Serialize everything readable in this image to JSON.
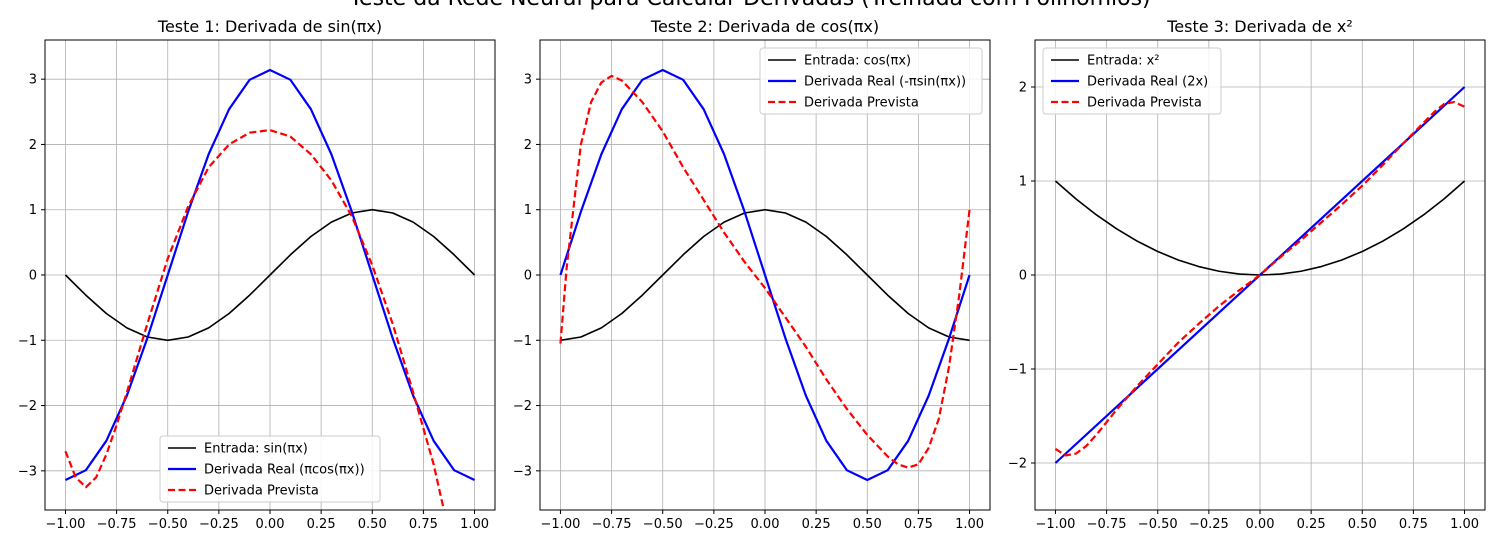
{
  "figure_title": "Teste da Rede Neural para Calcular Derivadas (Treinada com Polinômios)",
  "chart_data": [
    {
      "type": "line",
      "title": "Teste 1: Derivada de sin(πx)",
      "xlim": [
        -1.1,
        1.1
      ],
      "ylim": [
        -3.6,
        3.6
      ],
      "xticks": [
        "−1.00",
        "−0.75",
        "−0.50",
        "−0.25",
        "0.00",
        "0.25",
        "0.50",
        "0.75",
        "1.00"
      ],
      "yticks": [
        "−3",
        "−2",
        "−1",
        "0",
        "1",
        "2",
        "3"
      ],
      "grid": true,
      "legend_position": "lower-center",
      "series": [
        {
          "name": "Entrada: sin(πx)",
          "color": "#000000",
          "style": "solid",
          "x": [
            -1,
            -0.9,
            -0.8,
            -0.7,
            -0.6,
            -0.5,
            -0.4,
            -0.3,
            -0.2,
            -0.1,
            0,
            0.1,
            0.2,
            0.3,
            0.4,
            0.5,
            0.6,
            0.7,
            0.8,
            0.9,
            1
          ],
          "y": [
            0,
            -0.31,
            -0.59,
            -0.81,
            -0.95,
            -1,
            -0.95,
            -0.81,
            -0.59,
            -0.31,
            0,
            0.31,
            0.59,
            0.81,
            0.95,
            1,
            0.95,
            0.81,
            0.59,
            0.31,
            0
          ]
        },
        {
          "name": "Derivada Real (πcos(πx))",
          "color": "#0000ff",
          "style": "solid",
          "x": [
            -1,
            -0.9,
            -0.8,
            -0.7,
            -0.6,
            -0.5,
            -0.4,
            -0.3,
            -0.2,
            -0.1,
            0,
            0.1,
            0.2,
            0.3,
            0.4,
            0.5,
            0.6,
            0.7,
            0.8,
            0.9,
            1
          ],
          "y": [
            -3.14,
            -2.99,
            -2.54,
            -1.85,
            -0.97,
            0,
            0.97,
            1.85,
            2.54,
            2.99,
            3.14,
            2.99,
            2.54,
            1.85,
            0.97,
            0,
            -0.97,
            -1.85,
            -2.54,
            -2.99,
            -3.14
          ]
        },
        {
          "name": "Derivada Prevista",
          "color": "#ff0000",
          "style": "dashed",
          "x": [
            -1,
            -0.95,
            -0.9,
            -0.85,
            -0.8,
            -0.75,
            -0.7,
            -0.6,
            -0.5,
            -0.4,
            -0.3,
            -0.2,
            -0.1,
            0,
            0.1,
            0.2,
            0.3,
            0.4,
            0.5,
            0.6,
            0.7,
            0.8,
            0.85
          ],
          "y": [
            -2.7,
            -3.1,
            -3.25,
            -3.1,
            -2.75,
            -2.3,
            -1.8,
            -0.75,
            0.25,
            1.05,
            1.65,
            2.0,
            2.18,
            2.22,
            2.12,
            1.85,
            1.45,
            0.9,
            0.15,
            -0.75,
            -1.8,
            -2.9,
            -3.6
          ]
        }
      ]
    },
    {
      "type": "line",
      "title": "Teste 2: Derivada de cos(πx)",
      "xlim": [
        -1.1,
        1.1
      ],
      "ylim": [
        -3.6,
        3.6
      ],
      "xticks": [
        "−1.00",
        "−0.75",
        "−0.50",
        "−0.25",
        "0.00",
        "0.25",
        "0.50",
        "0.75",
        "1.00"
      ],
      "yticks": [
        "−3",
        "−2",
        "−1",
        "0",
        "1",
        "2",
        "3"
      ],
      "grid": true,
      "legend_position": "upper-right",
      "series": [
        {
          "name": "Entrada: cos(πx)",
          "color": "#000000",
          "style": "solid",
          "x": [
            -1,
            -0.9,
            -0.8,
            -0.7,
            -0.6,
            -0.5,
            -0.4,
            -0.3,
            -0.2,
            -0.1,
            0,
            0.1,
            0.2,
            0.3,
            0.4,
            0.5,
            0.6,
            0.7,
            0.8,
            0.9,
            1
          ],
          "y": [
            -1,
            -0.95,
            -0.81,
            -0.59,
            -0.31,
            0,
            0.31,
            0.59,
            0.81,
            0.95,
            1,
            0.95,
            0.81,
            0.59,
            0.31,
            0,
            -0.31,
            -0.59,
            -0.81,
            -0.95,
            -1
          ]
        },
        {
          "name": "Derivada Real (-πsin(πx))",
          "color": "#0000ff",
          "style": "solid",
          "x": [
            -1,
            -0.9,
            -0.8,
            -0.7,
            -0.6,
            -0.5,
            -0.4,
            -0.3,
            -0.2,
            -0.1,
            0,
            0.1,
            0.2,
            0.3,
            0.4,
            0.5,
            0.6,
            0.7,
            0.8,
            0.9,
            1
          ],
          "y": [
            0,
            0.97,
            1.85,
            2.54,
            2.99,
            3.14,
            2.99,
            2.54,
            1.85,
            0.97,
            0,
            -0.97,
            -1.85,
            -2.54,
            -2.99,
            -3.14,
            -2.99,
            -2.54,
            -1.85,
            -0.97,
            0
          ]
        },
        {
          "name": "Derivada Prevista",
          "color": "#ff0000",
          "style": "dashed",
          "x": [
            -1,
            -0.97,
            -0.93,
            -0.9,
            -0.85,
            -0.8,
            -0.75,
            -0.7,
            -0.6,
            -0.5,
            -0.4,
            -0.3,
            -0.2,
            -0.1,
            0,
            0.1,
            0.2,
            0.3,
            0.4,
            0.5,
            0.6,
            0.65,
            0.7,
            0.75,
            0.8,
            0.85,
            0.9,
            0.95,
            1
          ],
          "y": [
            -1.05,
            0.1,
            1.2,
            2.0,
            2.65,
            2.95,
            3.05,
            2.98,
            2.65,
            2.2,
            1.65,
            1.15,
            0.65,
            0.2,
            -0.2,
            -0.65,
            -1.1,
            -1.6,
            -2.05,
            -2.45,
            -2.78,
            -2.9,
            -2.95,
            -2.9,
            -2.65,
            -2.2,
            -1.4,
            -0.3,
            1.0
          ]
        }
      ]
    },
    {
      "type": "line",
      "title": "Teste 3: Derivada de x²",
      "xlim": [
        -1.1,
        1.1
      ],
      "ylim": [
        -2.5,
        2.5
      ],
      "xticks": [
        "−1.00",
        "−0.75",
        "−0.50",
        "−0.25",
        "0.00",
        "0.25",
        "0.50",
        "0.75",
        "1.00"
      ],
      "yticks": [
        "−2",
        "−1",
        "0",
        "1",
        "2"
      ],
      "grid": true,
      "legend_position": "upper-left",
      "series": [
        {
          "name": "Entrada: x²",
          "color": "#000000",
          "style": "solid",
          "x": [
            -1,
            -0.9,
            -0.8,
            -0.7,
            -0.6,
            -0.5,
            -0.4,
            -0.3,
            -0.2,
            -0.1,
            0,
            0.1,
            0.2,
            0.3,
            0.4,
            0.5,
            0.6,
            0.7,
            0.8,
            0.9,
            1
          ],
          "y": [
            1,
            0.81,
            0.64,
            0.49,
            0.36,
            0.25,
            0.16,
            0.09,
            0.04,
            0.01,
            0,
            0.01,
            0.04,
            0.09,
            0.16,
            0.25,
            0.36,
            0.49,
            0.64,
            0.81,
            1
          ]
        },
        {
          "name": "Derivada Real (2x)",
          "color": "#0000ff",
          "style": "solid",
          "x": [
            -1,
            1
          ],
          "y": [
            -2,
            2
          ]
        },
        {
          "name": "Derivada Prevista",
          "color": "#ff0000",
          "style": "dashed",
          "x": [
            -1,
            -0.95,
            -0.9,
            -0.85,
            -0.8,
            -0.7,
            -0.6,
            -0.5,
            -0.4,
            -0.3,
            -0.2,
            -0.1,
            0,
            0.1,
            0.2,
            0.3,
            0.4,
            0.5,
            0.6,
            0.7,
            0.8,
            0.85,
            0.9,
            0.95,
            1
          ],
          "y": [
            -1.85,
            -1.92,
            -1.9,
            -1.82,
            -1.7,
            -1.43,
            -1.18,
            -0.95,
            -0.72,
            -0.52,
            -0.33,
            -0.16,
            0,
            0.19,
            0.37,
            0.56,
            0.75,
            0.95,
            1.17,
            1.4,
            1.62,
            1.73,
            1.82,
            1.84,
            1.79
          ]
        }
      ]
    }
  ]
}
